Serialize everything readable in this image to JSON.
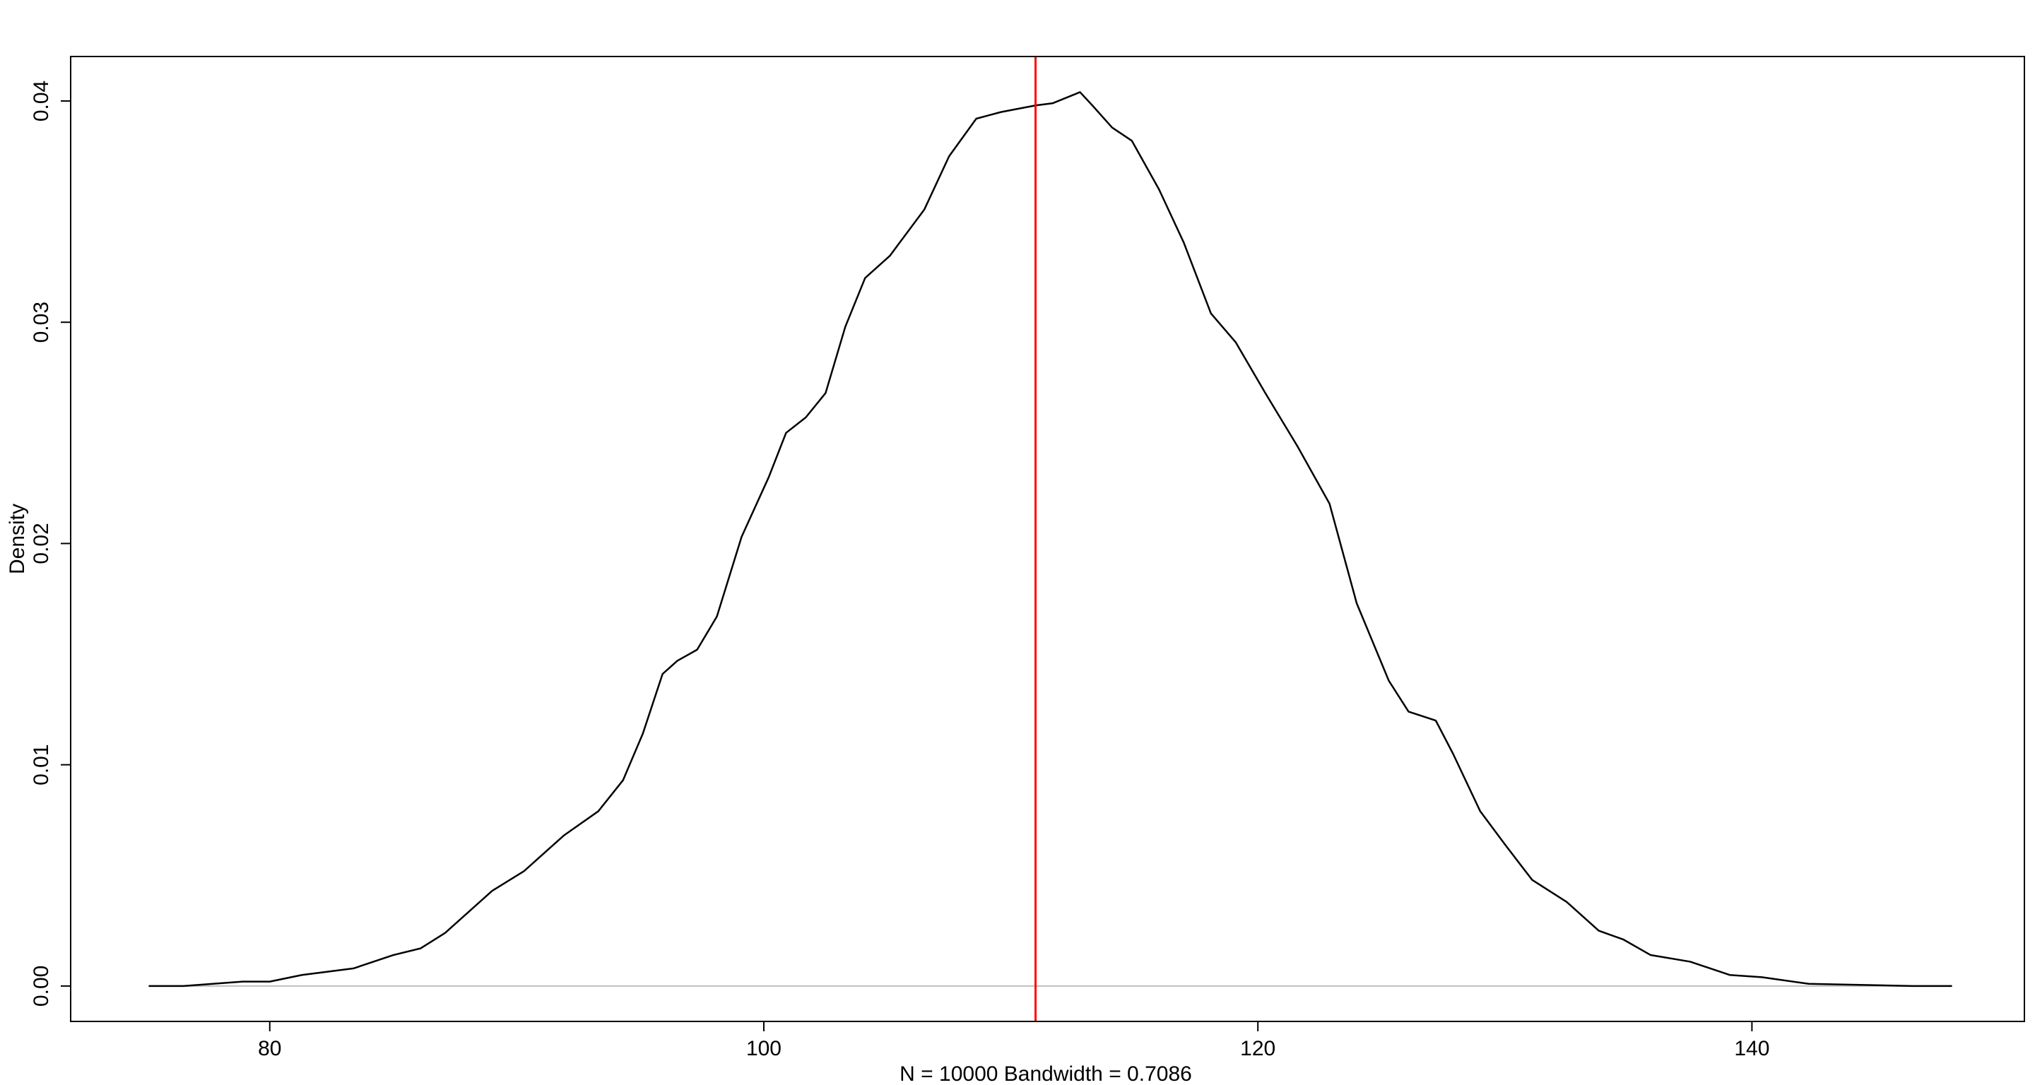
{
  "chart_data": {
    "type": "line",
    "x_label": "N = 10000   Bandwidth = 0.7086",
    "y_label": "Density",
    "x": [
      75.1,
      76.5,
      78.9,
      80,
      81.3,
      83.4,
      85,
      86.1,
      87.1,
      89,
      90.3,
      91.9,
      93.3,
      94.3,
      95.1,
      95.9,
      96.5,
      97.3,
      98.1,
      99.1,
      100.2,
      100.9,
      101.7,
      102.5,
      103.3,
      104.1,
      105.1,
      106.5,
      107.5,
      108.6,
      109.6,
      111.0,
      111.7,
      112.8,
      113.3,
      114.1,
      114.9,
      116,
      117,
      118.1,
      119.1,
      120.3,
      121.6,
      122.9,
      124,
      125.3,
      126.1,
      127.2,
      127.9,
      129,
      130,
      131.1,
      132.5,
      133.8,
      134.8,
      135.9,
      137.5,
      139.1,
      140.4,
      142.3,
      146.5,
      148.1
    ],
    "series": [
      {
        "color": "#000000",
        "values": [
          0,
          0,
          0.0002,
          0.0002,
          0.0005,
          0.0008,
          0.0014,
          0.0017,
          0.0024,
          0.0043,
          0.0052,
          0.0068,
          0.0079,
          0.0093,
          0.0114,
          0.0141,
          0.0147,
          0.0152,
          0.0167,
          0.0203,
          0.023,
          0.025,
          0.0257,
          0.0268,
          0.0298,
          0.032,
          0.033,
          0.0351,
          0.0375,
          0.0392,
          0.0395,
          0.0398,
          0.0399,
          0.0404,
          0.0398,
          0.0388,
          0.0382,
          0.036,
          0.0336,
          0.0304,
          0.0291,
          0.0268,
          0.0244,
          0.0218,
          0.0173,
          0.0138,
          0.0124,
          0.012,
          0.0105,
          0.0079,
          0.0064,
          0.0048,
          0.0038,
          0.0025,
          0.0021,
          0.0014,
          0.0011,
          0.0005,
          0.0004,
          0.0001,
          0,
          0
        ]
      }
    ],
    "vline": {
      "value": 111,
      "color": "#ff0000"
    },
    "xlim": [
      71.94,
      151.03
    ],
    "ylim": [
      -0.0016,
      0.04201
    ],
    "xticks": [
      80,
      100,
      120,
      140
    ],
    "yticks": [
      {
        "value": 0,
        "label": "0.00"
      },
      0.01,
      0.02,
      0.03,
      0.04
    ]
  }
}
